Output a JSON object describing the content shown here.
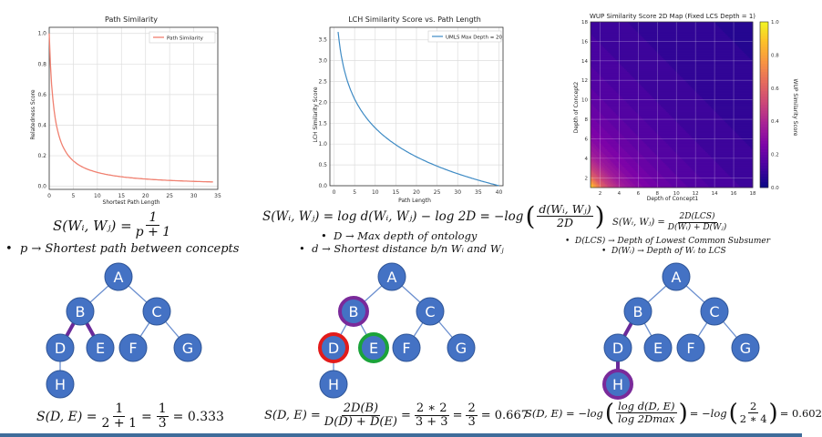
{
  "panels": [
    {
      "id": "path",
      "chart_data": {
        "type": "line",
        "title": "Path Similarity",
        "xlabel": "Shortest Path Length",
        "ylabel": "Relatedness Score",
        "xlim": [
          0,
          35
        ],
        "ylim": [
          0,
          1.0
        ],
        "xticks": [
          "0",
          "5",
          "10",
          "15",
          "20",
          "25",
          "30",
          "35"
        ],
        "yticks": [
          "0.0",
          "0.2",
          "0.4",
          "0.6",
          "0.8",
          "1.0"
        ],
        "grid": true,
        "legend_position": "top-right",
        "series": [
          {
            "name": "Path Similarity",
            "color": "#f08070",
            "formula": "1/(p+1)",
            "x_range": [
              0,
              34
            ]
          }
        ]
      },
      "formula_lhs": "S(Wᵢ, Wⱼ) =",
      "formula_num": "1",
      "formula_den": "p + 1",
      "bullets": [
        "p → Shortest path between concepts"
      ],
      "tree_highlight": {
        "edges": [
          "B-D",
          "B-E"
        ],
        "rings": []
      },
      "result": {
        "lhs": "S(D, E) =",
        "f1n": "1",
        "f1d": "2 + 1",
        "eq": "=",
        "f2n": "1",
        "f2d": "3",
        "tail": "= 0.333"
      }
    },
    {
      "id": "lch",
      "chart_data": {
        "type": "line",
        "title": "LCH Similarity Score vs. Path Length",
        "xlabel": "Path Length",
        "ylabel": "LCH Similarity Score",
        "xlim": [
          0,
          40
        ],
        "ylim": [
          0,
          3.8
        ],
        "xticks": [
          "0",
          "5",
          "10",
          "15",
          "20",
          "25",
          "30",
          "35",
          "40"
        ],
        "yticks": [
          "0.0",
          "0.5",
          "1.0",
          "1.5",
          "2.0",
          "2.5",
          "3.0",
          "3.5"
        ],
        "grid": true,
        "legend_position": "top-right",
        "series": [
          {
            "name": "UMLS Max Depth = 20",
            "color": "#3d8ac4",
            "formula": "-log(d/40)",
            "x_range": [
              1,
              40
            ]
          }
        ]
      },
      "formula_main": "S(Wᵢ, Wⱼ) = log d(Wᵢ, Wⱼ) − log 2D = −log",
      "formula_num": "d(Wᵢ, Wⱼ)",
      "formula_den": "2D",
      "bullets": [
        "D → Max depth of ontology",
        "d → Shortest distance b/n Wᵢ and Wⱼ"
      ],
      "tree_highlight": {
        "edges": [],
        "rings": [
          {
            "node": "B",
            "color": "#7a2a9a"
          },
          {
            "node": "D",
            "color": "#e21b1b"
          },
          {
            "node": "E",
            "color": "#1ba33a"
          }
        ]
      },
      "result": {
        "lhs": "S(D, E) =",
        "f1n": "2D(B)",
        "f1d": "D(D) + D(E)",
        "eq": "=",
        "f2n": "2 ∗ 2",
        "f2d": "3 + 3",
        "eq2": "=",
        "f3n": "2",
        "f3d": "3",
        "tail": "= 0.667"
      }
    },
    {
      "id": "wup",
      "chart_data": {
        "type": "heatmap",
        "title": "WUP Similarity Score 2D Map (Fixed LCS Depth = 1)",
        "xlabel": "Depth of Concept1",
        "ylabel": "Depth of Concept2",
        "xlim": [
          1,
          18
        ],
        "ylim": [
          1,
          18
        ],
        "xticks": [
          "2",
          "4",
          "6",
          "8",
          "10",
          "12",
          "14",
          "16",
          "18"
        ],
        "yticks": [
          "2",
          "4",
          "6",
          "8",
          "10",
          "12",
          "14",
          "16",
          "18"
        ],
        "formula": "2/(x+y)",
        "colorbar": {
          "label": "WUP Similarity Score",
          "ticks": [
            "0.0",
            "0.2",
            "0.4",
            "0.6",
            "0.8",
            "1.0"
          ],
          "range": [
            0,
            1.0
          ],
          "colormap": "plasma"
        }
      },
      "formula_lhs": "S(Wᵢ, Wⱼ) =",
      "formula_num": "2D(LCS)",
      "formula_den": "D(Wᵢ) + D(Wⱼ)",
      "bullets": [
        "D(LCS) → Depth of Lowest Common Subsumer",
        "D(Wᵢ) → Depth of Wᵢ to LCS"
      ],
      "tree_highlight": {
        "edges": [
          "B-D",
          "D-H"
        ],
        "rings": [
          {
            "node": "H",
            "color": "#7a2a9a"
          }
        ]
      },
      "result": {
        "lhs": "S(D, E) = −log",
        "f1n": "log d(D, E)",
        "f1d": "log 2Dmax",
        "eq": "= −log",
        "f2n": "2",
        "f2d": "2 ∗ 4",
        "tail": "= 0.602"
      }
    }
  ],
  "tree": {
    "node_color": "#4472c4",
    "nodes": [
      "A",
      "B",
      "C",
      "D",
      "E",
      "F",
      "G",
      "H"
    ],
    "edges": [
      [
        "A",
        "B"
      ],
      [
        "A",
        "C"
      ],
      [
        "B",
        "D"
      ],
      [
        "B",
        "E"
      ],
      [
        "C",
        "F"
      ],
      [
        "C",
        "G"
      ],
      [
        "D",
        "H"
      ]
    ],
    "highlight_color": "#6a2a9a"
  },
  "colors": {
    "grid": "#dddddd",
    "axis": "#333333"
  }
}
